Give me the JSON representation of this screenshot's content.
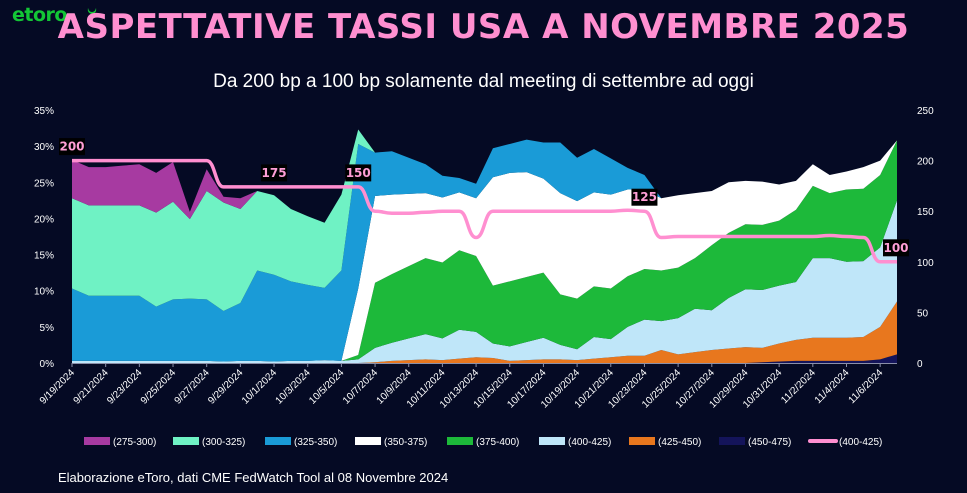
{
  "brand": {
    "logo_text": "etoro"
  },
  "title": "ASPETTATIVE TASSI USA A NOVEMBRE 2025",
  "subtitle": "Da 200 bp a 100 bp solamente dal meeting di settembre ad oggi",
  "source": "Elaborazione eToro, dati CME FedWatch Tool al 08 Novembre 2024",
  "chart_data": {
    "type": "area",
    "stacking": "stacked",
    "x_labels": [
      "9/19/2024",
      "9/21/2024",
      "9/23/2024",
      "9/25/2024",
      "9/27/2024",
      "9/29/2024",
      "10/1/2024",
      "10/3/2024",
      "10/5/2024",
      "10/7/2024",
      "10/9/2024",
      "10/11/2024",
      "10/13/2024",
      "10/15/2024",
      "10/17/2024",
      "10/19/2024",
      "10/21/2024",
      "10/23/2024",
      "10/25/2024",
      "10/27/2024",
      "10/29/2024",
      "10/31/2024",
      "11/2/2024",
      "11/4/2024",
      "11/6/2024"
    ],
    "x_index": [
      0,
      1,
      2,
      3,
      4,
      5,
      6,
      7,
      8,
      9,
      10,
      11,
      12,
      13,
      14,
      15,
      16,
      17,
      18,
      19,
      20,
      21,
      22,
      23,
      24,
      25,
      26,
      27,
      28,
      29,
      30,
      31,
      32,
      33,
      34,
      35,
      36,
      37,
      38,
      39,
      40,
      41,
      42,
      43,
      44,
      45,
      46,
      47,
      48,
      49
    ],
    "series": [
      {
        "name": "(450-475)",
        "color": "#14145a",
        "values": [
          0,
          0,
          0,
          0,
          0,
          0,
          0,
          0,
          0,
          0,
          0,
          0,
          0,
          0,
          0,
          0,
          0,
          0,
          0,
          0,
          0,
          0,
          0,
          0,
          0,
          0,
          0,
          0,
          0,
          0,
          0,
          0,
          0,
          0,
          0,
          0,
          0,
          0,
          0,
          0,
          0,
          0.1,
          0.2,
          0.3,
          0.3,
          0.3,
          0.3,
          0.3,
          0.5,
          1.2
        ]
      },
      {
        "name": "(425-450)",
        "color": "#e8771e",
        "values": [
          0,
          0,
          0,
          0,
          0,
          0,
          0,
          0,
          0,
          0,
          0,
          0,
          0,
          0,
          0,
          0,
          0,
          0,
          0.1,
          0.3,
          0.4,
          0.5,
          0.4,
          0.6,
          0.8,
          0.7,
          0.3,
          0.4,
          0.5,
          0.5,
          0.4,
          0.6,
          0.8,
          1,
          1,
          1.8,
          1.2,
          1.5,
          1.8,
          2,
          2.2,
          2,
          2.5,
          2.9,
          3.2,
          3.2,
          3.2,
          3.3,
          4.5,
          7.3
        ]
      },
      {
        "name": "(400-425)",
        "color": "#bfe6f9",
        "values": [
          0.3,
          0.3,
          0.3,
          0.3,
          0.3,
          0.3,
          0.3,
          0.3,
          0.3,
          0.2,
          0.3,
          0.3,
          0.2,
          0.3,
          0.3,
          0.4,
          0.3,
          0.5,
          2,
          2.5,
          3,
          3.5,
          3,
          4,
          3.5,
          2,
          2,
          2.5,
          3,
          2,
          1.5,
          3,
          2.5,
          4,
          5,
          4,
          5,
          6,
          5.5,
          7,
          8,
          8,
          8,
          8,
          11,
          11,
          10.5,
          10.5,
          11,
          14
        ]
      },
      {
        "name": "(375-400)",
        "color": "#1db93a",
        "values": [
          0,
          0,
          0,
          0,
          0,
          0,
          0,
          0,
          0,
          0,
          0,
          0,
          0,
          0,
          0,
          0,
          0,
          0.6,
          9,
          9.5,
          10,
          10.5,
          10.5,
          11,
          10.5,
          8,
          9,
          9,
          9,
          7,
          7,
          7,
          7,
          7,
          7,
          7,
          7,
          7,
          9,
          9,
          9,
          9,
          9,
          10,
          10,
          9,
          10,
          10,
          10,
          8.3
        ]
      },
      {
        "name": "(350-375)",
        "color": "#ffffff",
        "values": [
          0,
          0,
          0,
          0,
          0,
          0,
          0,
          0,
          0,
          0,
          0,
          0,
          0,
          0,
          0,
          0,
          0,
          9.2,
          12,
          11,
          10,
          9,
          9,
          8,
          8,
          15,
          15,
          14.5,
          13,
          14,
          13.5,
          13,
          13,
          12,
          11,
          10,
          10,
          9,
          7.5,
          7,
          6,
          6,
          5,
          4,
          3,
          2.5,
          2.5,
          3,
          2,
          0
        ]
      },
      {
        "name": "(325-350)",
        "color": "#1a9bd7",
        "values": [
          10,
          9,
          9,
          9,
          9,
          7.5,
          8.5,
          8.6,
          8.5,
          7,
          8,
          12.5,
          12,
          11,
          10.5,
          10,
          12.5,
          20,
          6,
          6,
          5,
          4,
          3,
          2,
          2,
          4,
          4,
          4.5,
          5,
          7,
          6,
          6,
          5,
          3,
          2,
          0,
          0,
          0,
          0,
          0,
          0,
          0,
          0,
          0,
          0,
          0,
          0,
          0,
          0,
          0
        ]
      },
      {
        "name": "(300-325)",
        "color": "#6ff2c4",
        "values": [
          12.5,
          12.5,
          12.5,
          12.5,
          12.5,
          13,
          13.5,
          11,
          15,
          15,
          13,
          11,
          11,
          10,
          9.5,
          9,
          10.5,
          2,
          0,
          0,
          0,
          0,
          0,
          0,
          0,
          0,
          0,
          0,
          0,
          0,
          0,
          0,
          0,
          0,
          0,
          0,
          0,
          0,
          0,
          0,
          0,
          0,
          0,
          0,
          0,
          0,
          0,
          0,
          0,
          0
        ]
      },
      {
        "name": "(275-300)",
        "color": "#a73aa1",
        "values": [
          5.3,
          5.3,
          5.3,
          5.5,
          5.7,
          5.5,
          5.5,
          1,
          3,
          0.8,
          1.5,
          0,
          0,
          0,
          0,
          0,
          0,
          0,
          0,
          0,
          0,
          0,
          0,
          0,
          0,
          0,
          0,
          0,
          0,
          0,
          0,
          0,
          0,
          0,
          0,
          0,
          0,
          0,
          0,
          0,
          0,
          0,
          0,
          0,
          0,
          0,
          0,
          0,
          0,
          0
        ]
      }
    ],
    "line": {
      "name": "(400-425)",
      "color": "#ff8fd0",
      "axis": "right",
      "values": [
        200,
        200,
        200,
        200,
        200,
        200,
        200,
        200,
        200,
        174,
        174,
        174,
        174,
        174,
        174,
        174,
        174,
        174,
        150,
        148,
        148,
        149,
        150,
        150,
        124,
        150,
        150,
        150,
        150,
        150,
        150,
        150,
        150,
        151,
        150,
        124,
        125,
        125,
        125,
        125,
        125,
        125,
        125,
        125,
        125,
        126,
        125,
        124,
        100,
        100
      ]
    },
    "annotations": [
      {
        "x": 0,
        "text": "200"
      },
      {
        "x": 12,
        "text": "175"
      },
      {
        "x": 17,
        "text": "150"
      },
      {
        "x": 34,
        "text": "125"
      },
      {
        "x": 49,
        "text": "100"
      }
    ],
    "y_left": {
      "ticks": [
        "0%",
        "5%",
        "10%",
        "15%",
        "20%",
        "25%",
        "30%",
        "35%"
      ],
      "min": 0,
      "max": 35
    },
    "y_right": {
      "ticks": [
        "0",
        "50",
        "100",
        "150",
        "200",
        "250"
      ],
      "min": 0,
      "max": 250
    },
    "legend": [
      "(275-300)",
      "(300-325)",
      "(325-350)",
      "(350-375)",
      "(375-400)",
      "(400-425)",
      "(425-450)",
      "(450-475)",
      "(400-425)"
    ]
  }
}
